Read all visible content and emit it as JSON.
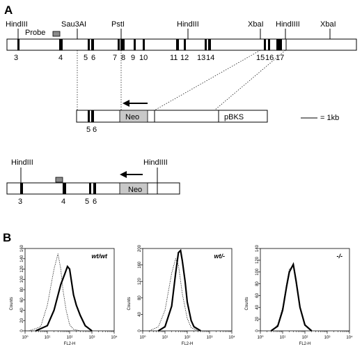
{
  "panel_a": {
    "label": "A",
    "map_sites": [
      "HindIII",
      "Sau3AI",
      "PstI",
      "HindIII",
      "XbaI",
      "HindIIII",
      "XbaI"
    ],
    "probe": "Probe",
    "exons": [
      "3",
      "4",
      "5",
      "6",
      "7",
      "8",
      "9",
      "10",
      "11",
      "12",
      "13",
      "14",
      "15",
      "16",
      "17"
    ],
    "construct": {
      "neo": "Neo",
      "vector": "pBKS",
      "exons": [
        "5",
        "6"
      ]
    },
    "scale": "= 1kb",
    "targeted": {
      "sites": [
        "HindIII",
        "HindIIII"
      ],
      "neo": "Neo",
      "exons": [
        "3",
        "4",
        "5",
        "6"
      ]
    }
  },
  "panel_b": {
    "label": "B"
  },
  "chart_data": [
    {
      "type": "line",
      "title": "wt/wt",
      "xlabel": "FL2-H",
      "ylabel": "Counts",
      "x_scale": "log",
      "xlim": [
        1,
        10000
      ],
      "ylim": [
        0,
        160
      ],
      "xticks": [
        "10⁰",
        "10¹",
        "10²",
        "10³",
        "10⁴"
      ],
      "yticks": [
        "0",
        "20",
        "40",
        "60",
        "80",
        "100",
        "120",
        "140",
        "160"
      ],
      "series": [
        {
          "style": "dotted",
          "x": [
            1.5,
            5,
            10,
            20,
            30,
            40,
            50,
            70,
            100,
            150,
            300
          ],
          "y": [
            0,
            8,
            50,
            120,
            150,
            120,
            80,
            40,
            12,
            3,
            0
          ]
        },
        {
          "style": "bold",
          "x": [
            3,
            10,
            20,
            40,
            60,
            80,
            100,
            150,
            200,
            300,
            500,
            1000
          ],
          "y": [
            0,
            10,
            40,
            90,
            110,
            125,
            120,
            70,
            50,
            30,
            10,
            0
          ]
        }
      ]
    },
    {
      "type": "line",
      "title": "wt/-",
      "xlabel": "FL2-H",
      "ylabel": "Counts",
      "x_scale": "log",
      "xlim": [
        1,
        10000
      ],
      "ylim": [
        0,
        200
      ],
      "xticks": [
        "10⁰",
        "10¹",
        "10²",
        "10³",
        "10⁴"
      ],
      "yticks": [
        "0",
        "40",
        "80",
        "120",
        "160",
        "200"
      ],
      "series": [
        {
          "style": "dotted",
          "x": [
            2,
            5,
            10,
            20,
            30,
            40,
            60,
            100,
            150,
            300
          ],
          "y": [
            0,
            10,
            50,
            140,
            175,
            160,
            90,
            30,
            8,
            0
          ]
        },
        {
          "style": "bold",
          "x": [
            5,
            10,
            20,
            30,
            40,
            50,
            60,
            80,
            100,
            150,
            200,
            400
          ],
          "y": [
            0,
            10,
            60,
            140,
            190,
            195,
            170,
            120,
            70,
            25,
            10,
            0
          ]
        }
      ]
    },
    {
      "type": "line",
      "title": "-/-",
      "xlabel": "FL2-H",
      "ylabel": "Counts",
      "x_scale": "log",
      "xlim": [
        1,
        10000
      ],
      "ylim": [
        0,
        140
      ],
      "xticks": [
        "10⁰",
        "10¹",
        "10²",
        "10³",
        "10⁴"
      ],
      "yticks": [
        "0",
        "20",
        "40",
        "60",
        "80",
        "100",
        "120",
        "140"
      ],
      "series": [
        {
          "style": "dotted",
          "x": [
            3,
            6,
            10,
            15,
            20,
            30,
            40,
            60,
            100,
            200
          ],
          "y": [
            0,
            10,
            40,
            80,
            105,
            110,
            80,
            40,
            10,
            0
          ]
        },
        {
          "style": "bold",
          "x": [
            3,
            6,
            10,
            15,
            20,
            30,
            40,
            60,
            100,
            200
          ],
          "y": [
            0,
            8,
            35,
            75,
            100,
            113,
            85,
            40,
            10,
            0
          ]
        }
      ]
    }
  ]
}
